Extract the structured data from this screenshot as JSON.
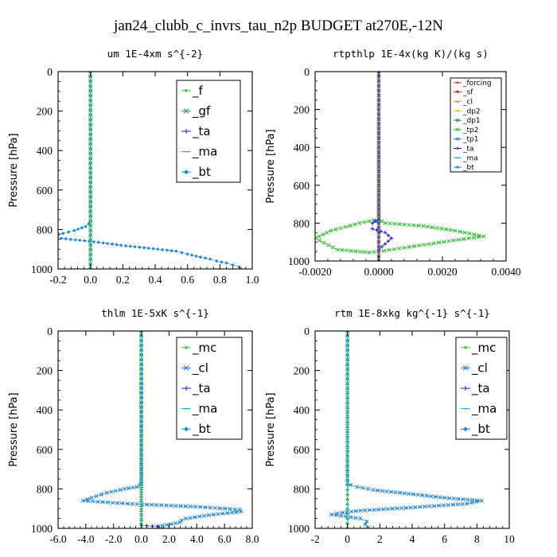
{
  "title": "jan24_clubb_c_invrs_tau_n2p  BUDGET at270E,-12N",
  "chart_data": [
    {
      "type": "line",
      "title": "um  1E-4xm s^{-2}",
      "ylabel": "Pressure [hPa]",
      "xlim": [
        -0.2,
        1.0
      ],
      "ylim": [
        1000,
        0
      ],
      "xticks": [
        "-0.2",
        "0.0",
        "0.2",
        "0.4",
        "0.6",
        "0.8",
        "1.0"
      ],
      "xtick_values": [
        -0.2,
        0.0,
        0.2,
        0.4,
        0.6,
        0.8,
        1.0
      ],
      "yticks": [
        "0",
        "200",
        "400",
        "600",
        "800",
        "1000"
      ],
      "ytick_values": [
        0,
        200,
        400,
        600,
        800,
        1000
      ],
      "legend": {
        "position": "top-right",
        "size": "large"
      },
      "series": [
        {
          "name": "_f",
          "color": "#39d039",
          "marker": "circle",
          "x": [
            0,
            0
          ],
          "y": [
            0,
            1000
          ]
        },
        {
          "name": "_gf",
          "color": "#2a8fa0",
          "marker": "x",
          "x": [
            0,
            0
          ],
          "y": [
            0,
            1000
          ]
        },
        {
          "name": "_ta",
          "color": "#1818d0",
          "marker": "plus",
          "x": [
            0,
            0
          ],
          "y": [
            0,
            1000
          ]
        },
        {
          "name": "_ma",
          "color": "#22aadd",
          "marker": "dash",
          "x": [
            0,
            0
          ],
          "y": [
            0,
            1000
          ]
        },
        {
          "name": "_bt",
          "color": "#1a88e0",
          "marker": "diamond",
          "x": [
            0,
            0,
            -0.01,
            -0.03,
            -0.1,
            -0.17,
            -0.22,
            -0.18,
            0.05,
            0.19,
            0.36,
            0.53,
            0.6,
            0.68,
            0.74,
            0.78,
            0.84,
            0.88,
            0.92,
            0.93
          ],
          "y": [
            0,
            760,
            770,
            785,
            805,
            820,
            830,
            845,
            865,
            880,
            895,
            910,
            925,
            940,
            950,
            960,
            970,
            980,
            990,
            1000
          ]
        }
      ]
    },
    {
      "type": "line",
      "title": "rtpthlp  1E-4x(kg K)/(kg s)",
      "ylabel": "Pressure [hPa]",
      "xlim": [
        -0.002,
        0.004
      ],
      "ylim": [
        1000,
        0
      ],
      "xticks": [
        "-0.0020",
        "0.0000",
        "0.0020",
        "0.0040"
      ],
      "xtick_values": [
        -0.002,
        0.0,
        0.002,
        0.004
      ],
      "yticks": [
        "0",
        "200",
        "400",
        "600",
        "800",
        "1000"
      ],
      "ytick_values": [
        0,
        200,
        400,
        600,
        800,
        1000
      ],
      "legend": {
        "position": "top-right",
        "size": "small"
      },
      "series": [
        {
          "name": "_forcing",
          "color": "#e02020",
          "marker": "circle",
          "x": [
            0,
            0
          ],
          "y": [
            0,
            1000
          ]
        },
        {
          "name": "_sf",
          "color": "#cc1a1a",
          "marker": "triangle-down",
          "x": [
            0,
            0
          ],
          "y": [
            0,
            1000
          ]
        },
        {
          "name": "_cl",
          "color": "#e8a020",
          "marker": "triangle",
          "x": [
            0,
            0
          ],
          "y": [
            0,
            1000
          ]
        },
        {
          "name": "_dp2",
          "color": "#e8b800",
          "marker": "circle",
          "x": [
            0,
            0
          ],
          "y": [
            0,
            1000
          ]
        },
        {
          "name": "_dp1",
          "color": "#2a8a5a",
          "marker": "x",
          "x": [
            0,
            0
          ],
          "y": [
            0,
            1000
          ]
        },
        {
          "name": "_tp2",
          "color": "#30c030",
          "marker": "x",
          "x": [
            0,
            0,
            0.0002,
            0.0014,
            0.0024,
            0.0033,
            0.0022,
            0.0008,
            0,
            -0.0003,
            -0.0013,
            -0.002,
            -0.0015,
            -0.0006,
            0
          ],
          "y": [
            0,
            780,
            800,
            815,
            840,
            870,
            895,
            930,
            950,
            955,
            940,
            880,
            840,
            800,
            780
          ]
        },
        {
          "name": "_tp1",
          "color": "#1a80e0",
          "marker": "x",
          "x": [
            0,
            0,
            -0.0001,
            0,
            0
          ],
          "y": [
            0,
            780,
            790,
            800,
            1000
          ]
        },
        {
          "name": "_ta",
          "color": "#1818d0",
          "marker": "plus",
          "x": [
            0,
            -0.0002,
            -0.0002,
            0.0002,
            0.0004,
            0.0002,
            0
          ],
          "y": [
            780,
            800,
            830,
            850,
            880,
            910,
            940
          ]
        },
        {
          "name": "_ma",
          "color": "#22aadd",
          "marker": "dash",
          "x": [
            0,
            0
          ],
          "y": [
            0,
            1000
          ]
        },
        {
          "name": "_bt",
          "color": "#1a88e0",
          "marker": "diamond",
          "x": [
            0,
            0
          ],
          "y": [
            0,
            1000
          ]
        }
      ]
    },
    {
      "type": "line",
      "title": "thlm  1E-5xK s^{-1}",
      "ylabel": "Pressure [hPa]",
      "xlim": [
        -6.0,
        8.0
      ],
      "ylim": [
        1000,
        0
      ],
      "xticks": [
        "-6.0",
        "-4.0",
        "-2.0",
        "0.0",
        "2.0",
        "4.0",
        "6.0",
        "8.0"
      ],
      "xtick_values": [
        -6,
        -4,
        -2,
        0,
        2,
        4,
        6,
        8
      ],
      "yticks": [
        "0",
        "200",
        "400",
        "600",
        "800",
        "1000"
      ],
      "ytick_values": [
        0,
        200,
        400,
        600,
        800,
        1000
      ],
      "legend": {
        "position": "top-right",
        "size": "large"
      },
      "series": [
        {
          "name": "_mc",
          "color": "#39d039",
          "marker": "circle",
          "x": [
            0,
            0
          ],
          "y": [
            0,
            1000
          ]
        },
        {
          "name": "_cl",
          "color": "#1a80e0",
          "marker": "x",
          "x": [
            0,
            0,
            -0.1,
            -0.3,
            -1.2,
            -2.5,
            -3.6,
            -4.2,
            -1.0,
            3.9,
            7.1,
            7.2,
            5.2,
            3.2,
            2.9,
            2.8,
            1.2
          ],
          "y": [
            0,
            770,
            780,
            790,
            800,
            820,
            845,
            860,
            875,
            890,
            905,
            915,
            930,
            950,
            960,
            970,
            990
          ]
        },
        {
          "name": "_ta",
          "color": "#1818d0",
          "marker": "plus",
          "x": [
            0,
            0,
            1.2,
            1.6,
            2.0
          ],
          "y": [
            0,
            985,
            990,
            1000,
            1000
          ]
        },
        {
          "name": "_ma",
          "color": "#22aadd",
          "marker": "dash",
          "x": [
            0,
            0
          ],
          "y": [
            0,
            1000
          ]
        },
        {
          "name": "_bt",
          "color": "#1a88e0",
          "marker": "diamond",
          "x": [
            0,
            0
          ],
          "y": [
            0,
            1000
          ]
        }
      ]
    },
    {
      "type": "line",
      "title": "rtm  1E-8xkg kg^{-1} s^{-1}",
      "ylabel": "Pressure [hPa]",
      "xlim": [
        -2,
        10
      ],
      "ylim": [
        1000,
        0
      ],
      "xticks": [
        "-2",
        "0",
        "2",
        "4",
        "6",
        "8",
        "10"
      ],
      "xtick_values": [
        -2,
        0,
        2,
        4,
        6,
        8,
        10
      ],
      "yticks": [
        "0",
        "200",
        "400",
        "600",
        "800",
        "1000"
      ],
      "ytick_values": [
        0,
        200,
        400,
        600,
        800,
        1000
      ],
      "legend": {
        "position": "top-right",
        "size": "large"
      },
      "series": [
        {
          "name": "_mc",
          "color": "#39d039",
          "marker": "circle",
          "x": [
            0,
            0
          ],
          "y": [
            0,
            1000
          ]
        },
        {
          "name": "_cl",
          "color": "#1a80e0",
          "marker": "x",
          "x": [
            0,
            0,
            0.2,
            0.6,
            1.6,
            3.8,
            6.0,
            8.3,
            7.4,
            3.9,
            0.8,
            -0.3,
            -1.0,
            0.8,
            1.2,
            1.1,
            1.3
          ],
          "y": [
            0,
            770,
            780,
            790,
            805,
            825,
            845,
            860,
            875,
            895,
            910,
            920,
            930,
            950,
            965,
            980,
            995
          ]
        },
        {
          "name": "_ta",
          "color": "#1818d0",
          "marker": "plus",
          "x": [
            0,
            0
          ],
          "y": [
            0,
            1000
          ]
        },
        {
          "name": "_ma",
          "color": "#22aadd",
          "marker": "dash",
          "x": [
            0,
            0
          ],
          "y": [
            0,
            1000
          ]
        },
        {
          "name": "_bt",
          "color": "#1a88e0",
          "marker": "diamond",
          "x": [
            0,
            0
          ],
          "y": [
            0,
            1000
          ]
        }
      ]
    }
  ]
}
